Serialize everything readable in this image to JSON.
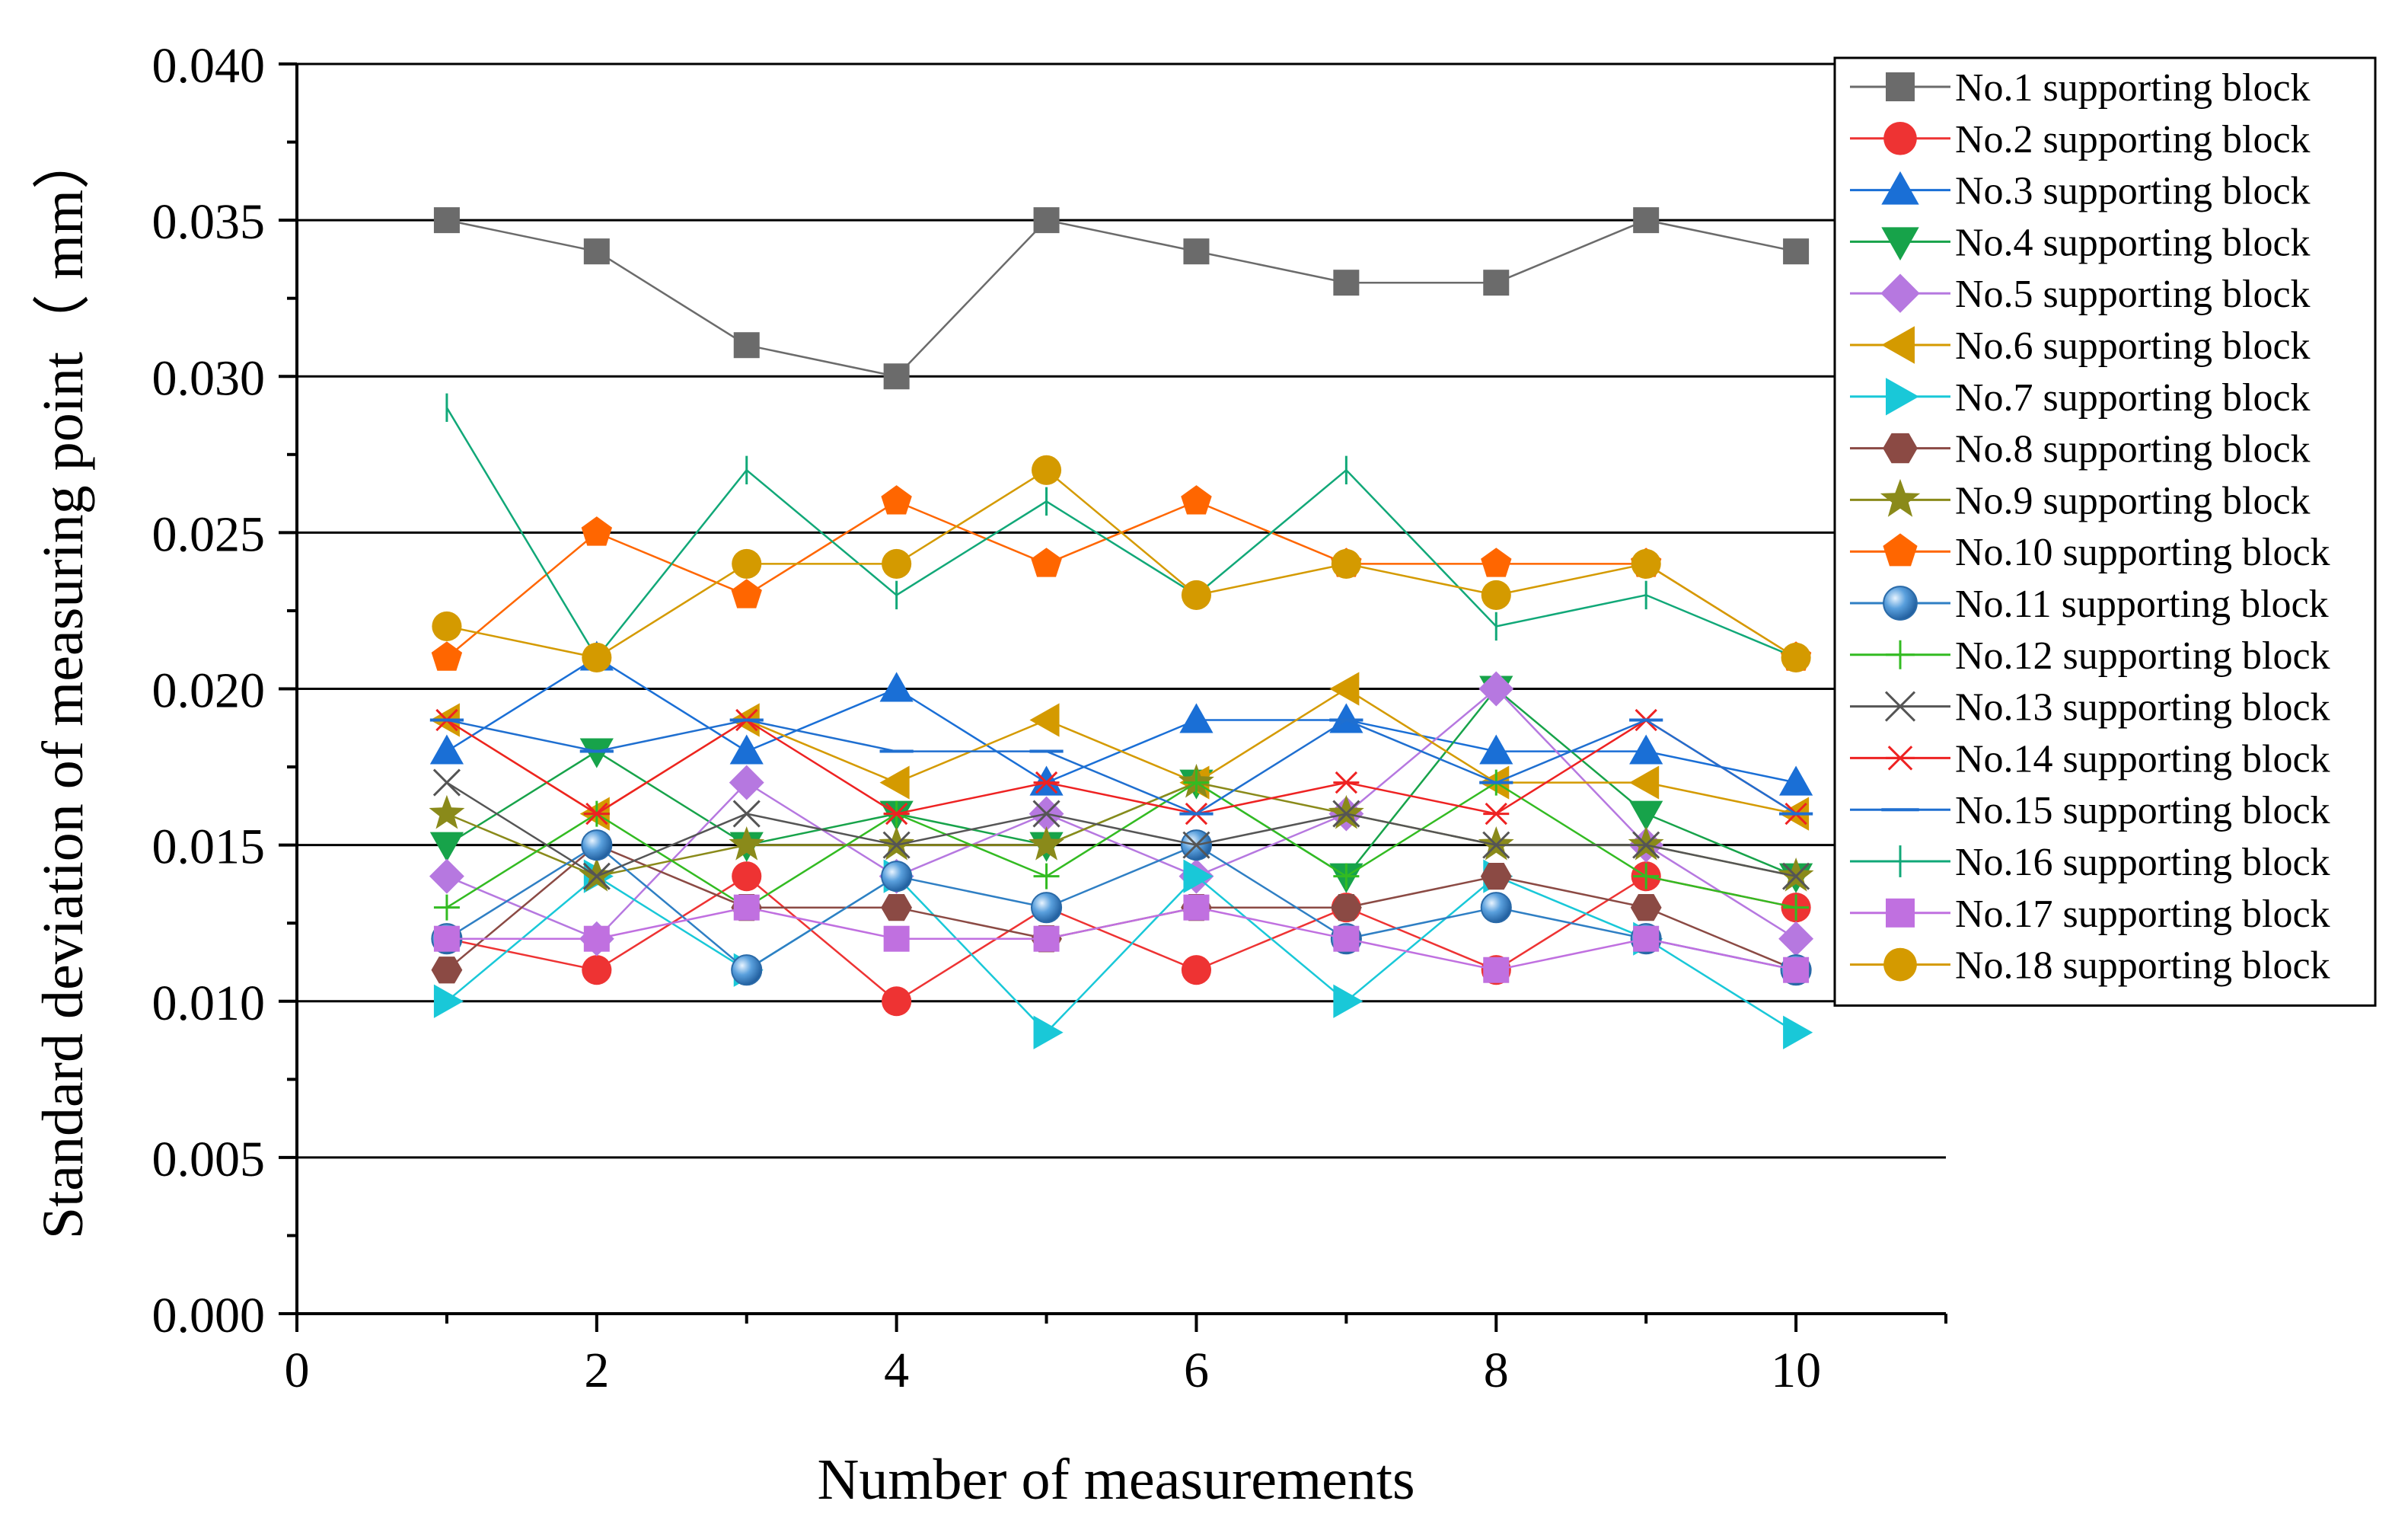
{
  "chart_data": {
    "type": "line",
    "xlabel": "Number of measurements",
    "ylabel": "Standard deviation of measuring point（ mm）",
    "xlim": [
      0,
      11
    ],
    "ylim": [
      0,
      0.04
    ],
    "xticks": [
      0,
      2,
      4,
      6,
      8,
      10
    ],
    "xtick_labels": [
      "0",
      "2",
      "4",
      "6",
      "8",
      "10"
    ],
    "yticks": [
      0,
      0.005,
      0.01,
      0.015,
      0.02,
      0.025,
      0.03,
      0.035,
      0.04
    ],
    "ytick_labels": [
      "0.000",
      "0.005",
      "0.010",
      "0.015",
      "0.020",
      "0.025",
      "0.030",
      "0.035",
      "0.040"
    ],
    "grid": "horizontal",
    "legend_position": "top-right",
    "x": [
      1,
      2,
      3,
      4,
      5,
      6,
      7,
      8,
      9,
      10
    ],
    "series": [
      {
        "name": "No.1 supporting block",
        "color": "#6b6b6b",
        "marker": "square",
        "values": [
          0.035,
          0.034,
          0.031,
          0.03,
          0.035,
          0.034,
          0.033,
          0.033,
          0.035,
          0.034
        ]
      },
      {
        "name": "No.2 supporting block",
        "color": "#ee3333",
        "marker": "circle",
        "values": [
          0.012,
          0.011,
          0.014,
          0.01,
          0.013,
          0.011,
          0.013,
          0.011,
          0.014,
          0.013
        ]
      },
      {
        "name": "No.3 supporting block",
        "color": "#1a6fd6",
        "marker": "triangle-up",
        "values": [
          0.018,
          0.021,
          0.018,
          0.02,
          0.017,
          0.019,
          0.019,
          0.018,
          0.018,
          0.017
        ]
      },
      {
        "name": "No.4 supporting block",
        "color": "#17a34a",
        "marker": "triangle-down",
        "values": [
          0.015,
          0.018,
          0.015,
          0.016,
          0.015,
          0.017,
          0.014,
          0.02,
          0.016,
          0.014
        ]
      },
      {
        "name": "No.5 supporting block",
        "color": "#b678e0",
        "marker": "diamond",
        "values": [
          0.014,
          0.012,
          0.017,
          0.014,
          0.016,
          0.014,
          0.016,
          0.02,
          0.015,
          0.012
        ]
      },
      {
        "name": "No.6 supporting block",
        "color": "#d49a00",
        "marker": "triangle-left",
        "values": [
          0.019,
          0.016,
          0.019,
          0.017,
          0.019,
          0.017,
          0.02,
          0.017,
          0.017,
          0.016
        ]
      },
      {
        "name": "No.7 supporting block",
        "color": "#19c8d8",
        "marker": "triangle-right",
        "values": [
          0.01,
          0.014,
          0.011,
          0.014,
          0.009,
          0.014,
          0.01,
          0.014,
          0.012,
          0.009
        ]
      },
      {
        "name": "No.8 supporting block",
        "color": "#8b4a44",
        "marker": "hexagon",
        "values": [
          0.011,
          0.015,
          0.013,
          0.013,
          0.012,
          0.013,
          0.013,
          0.014,
          0.013,
          0.011
        ]
      },
      {
        "name": "No.9 supporting block",
        "color": "#8a8a1a",
        "marker": "star",
        "values": [
          0.016,
          0.014,
          0.015,
          0.015,
          0.015,
          0.017,
          0.016,
          0.015,
          0.015,
          0.014
        ]
      },
      {
        "name": "No.10 supporting block",
        "color": "#ff6600",
        "marker": "pentagon",
        "values": [
          0.021,
          0.025,
          0.023,
          0.026,
          0.024,
          0.026,
          0.024,
          0.024,
          0.024,
          0.021
        ]
      },
      {
        "name": "No.11 supporting block",
        "color": "#2f7fc4",
        "marker": "sphere",
        "values": [
          0.012,
          0.015,
          0.011,
          0.014,
          0.013,
          0.015,
          0.012,
          0.013,
          0.012,
          0.011
        ]
      },
      {
        "name": "No.12 supporting block",
        "color": "#33bb22",
        "marker": "plus",
        "values": [
          0.013,
          0.016,
          0.013,
          0.016,
          0.014,
          0.017,
          0.014,
          0.017,
          0.014,
          0.013
        ]
      },
      {
        "name": "No.13 supporting block",
        "color": "#555555",
        "marker": "x",
        "values": [
          0.017,
          0.014,
          0.016,
          0.015,
          0.016,
          0.015,
          0.016,
          0.015,
          0.015,
          0.014
        ]
      },
      {
        "name": "No.14 supporting block",
        "color": "#ee2222",
        "marker": "asterisk",
        "values": [
          0.019,
          0.016,
          0.019,
          0.016,
          0.017,
          0.016,
          0.017,
          0.016,
          0.019,
          0.016
        ]
      },
      {
        "name": "No.15 supporting block",
        "color": "#1f6fd0",
        "marker": "dash",
        "values": [
          0.019,
          0.018,
          0.019,
          0.018,
          0.018,
          0.016,
          0.019,
          0.017,
          0.019,
          0.016
        ]
      },
      {
        "name": "No.16 supporting block",
        "color": "#11a878",
        "marker": "vbar",
        "values": [
          0.029,
          0.021,
          0.027,
          0.023,
          0.026,
          0.023,
          0.027,
          0.022,
          0.023,
          0.021
        ]
      },
      {
        "name": "No.17 supporting block",
        "color": "#c070e0",
        "marker": "square",
        "values": [
          0.012,
          0.012,
          0.013,
          0.012,
          0.012,
          0.013,
          0.012,
          0.011,
          0.012,
          0.011
        ]
      },
      {
        "name": "No.18 supporting block",
        "color": "#d49a00",
        "marker": "circle",
        "values": [
          0.022,
          0.021,
          0.024,
          0.024,
          0.027,
          0.023,
          0.024,
          0.023,
          0.024,
          0.021
        ]
      }
    ]
  }
}
